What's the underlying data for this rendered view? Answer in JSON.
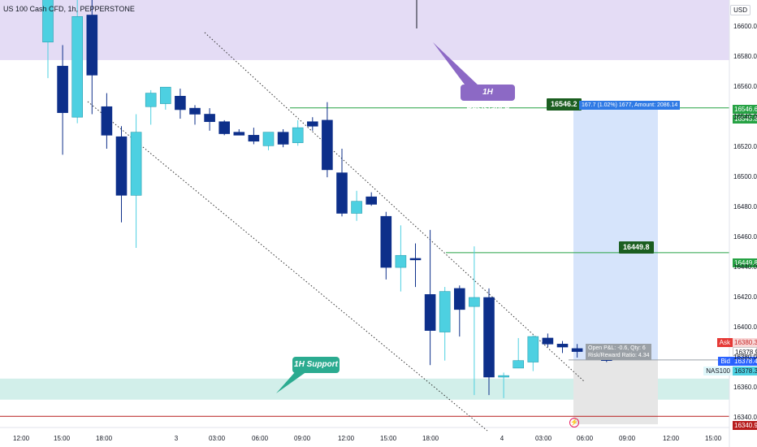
{
  "header": {
    "symbol_title": "US 100 Cash CFD, 1h, PEPPERSTONE",
    "currency": "USD"
  },
  "price_axis": {
    "ticks": [
      "16600.0",
      "16580.0",
      "16560.0",
      "16540.0",
      "16520.0",
      "16500.0",
      "16480.0",
      "16460.0",
      "16440.0",
      "16420.0",
      "16400.0",
      "16380.0",
      "16360.0",
      "16340.0"
    ],
    "ymin": 16334,
    "ymax": 16618
  },
  "time_axis": {
    "ticks": [
      "12:00",
      "15:00",
      "18:00",
      "3",
      "03:00",
      "06:00",
      "09:00",
      "12:00",
      "15:00",
      "18:00",
      "4",
      "03:00",
      "06:00",
      "09:00",
      "12:00",
      "15:00"
    ]
  },
  "zones": {
    "resistance_label": "1H Resistance",
    "support_label": "1H Support",
    "resistance_color": "#e4dcf5",
    "support_color": "#d2efea"
  },
  "position": {
    "target_price": "16546.2",
    "target_info": "167.7 (1.02%) 1677, Amount: 2086.14",
    "mid_price": "16449.8",
    "open_info_line1": "Open P&L: -0.6, Qty: 6",
    "open_info_line2": "Risk/Reward Ratio: 4.34"
  },
  "axis_labels": {
    "target_top": "16546.6",
    "target": "16545.8",
    "mid": "16449.8",
    "ask_label": "Ask",
    "ask": "16380.3",
    "mid_quote": "16378.9",
    "bid_label": "Bid",
    "bid": "16378.4",
    "symbol": "NAS100",
    "last": "16378.3",
    "low": "16340.9"
  },
  "colors": {
    "up": "#4dd0e1",
    "down": "#0d2f8a",
    "green_line": "#26a244",
    "red_line": "#b71c1c",
    "target_zone": "#d6e4fb",
    "stop_zone": "#e6e6e6"
  },
  "chart_data": {
    "type": "candlestick",
    "title": "US 100 Cash CFD, 1h, PEPPERSTONE",
    "series": [
      {
        "o": 16590,
        "h": 16640,
        "l": 16566,
        "c": 16630
      },
      {
        "o": 16574,
        "h": 16588,
        "l": 16515,
        "c": 16543
      },
      {
        "o": 16540,
        "h": 16624,
        "l": 16536,
        "c": 16607
      },
      {
        "o": 16608,
        "h": 16622,
        "l": 16542,
        "c": 16568
      },
      {
        "o": 16547,
        "h": 16556,
        "l": 16519,
        "c": 16528
      },
      {
        "o": 16527,
        "h": 16534,
        "l": 16470,
        "c": 16488
      },
      {
        "o": 16488,
        "h": 16542,
        "l": 16453,
        "c": 16530
      },
      {
        "o": 16547,
        "h": 16558,
        "l": 16535,
        "c": 16556
      },
      {
        "o": 16549,
        "h": 16560,
        "l": 16545,
        "c": 16560
      },
      {
        "o": 16554,
        "h": 16559,
        "l": 16539,
        "c": 16545
      },
      {
        "o": 16546,
        "h": 16548,
        "l": 16535,
        "c": 16542
      },
      {
        "o": 16542,
        "h": 16546,
        "l": 16531,
        "c": 16537
      },
      {
        "o": 16537,
        "h": 16538,
        "l": 16528,
        "c": 16529
      },
      {
        "o": 16530,
        "h": 16532,
        "l": 16528,
        "c": 16528
      },
      {
        "o": 16528,
        "h": 16533,
        "l": 16522,
        "c": 16524
      },
      {
        "o": 16521,
        "h": 16529,
        "l": 16518,
        "c": 16530
      },
      {
        "o": 16530,
        "h": 16532,
        "l": 16520,
        "c": 16522
      },
      {
        "o": 16523,
        "h": 16538,
        "l": 16521,
        "c": 16533
      },
      {
        "o": 16537,
        "h": 16540,
        "l": 16531,
        "c": 16534
      },
      {
        "o": 16538,
        "h": 16550,
        "l": 16500,
        "c": 16505
      },
      {
        "o": 16503,
        "h": 16519,
        "l": 16474,
        "c": 16476
      },
      {
        "o": 16476,
        "h": 16491,
        "l": 16471,
        "c": 16484
      },
      {
        "o": 16487,
        "h": 16490,
        "l": 16481,
        "c": 16482
      },
      {
        "o": 16474,
        "h": 16477,
        "l": 16432,
        "c": 16440
      },
      {
        "o": 16440,
        "h": 16468,
        "l": 16424,
        "c": 16448
      },
      {
        "o": 16446,
        "h": 16456,
        "l": 16427,
        "c": 16445
      },
      {
        "o": 16422,
        "h": 16465,
        "l": 16375,
        "c": 16398
      },
      {
        "o": 16397,
        "h": 16427,
        "l": 16378,
        "c": 16424
      },
      {
        "o": 16426,
        "h": 16428,
        "l": 16394,
        "c": 16412
      },
      {
        "o": 16414,
        "h": 16454,
        "l": 16355,
        "c": 16420
      },
      {
        "o": 16420,
        "h": 16426,
        "l": 16355,
        "c": 16367
      },
      {
        "o": 16367,
        "h": 16370,
        "l": 16353,
        "c": 16368
      },
      {
        "o": 16373,
        "h": 16393,
        "l": 16373,
        "c": 16378
      },
      {
        "o": 16377,
        "h": 16395,
        "l": 16371,
        "c": 16394
      },
      {
        "o": 16393,
        "h": 16396,
        "l": 16387,
        "c": 16389
      },
      {
        "o": 16389,
        "h": 16391,
        "l": 16383,
        "c": 16387
      },
      {
        "o": 16386,
        "h": 16389,
        "l": 16380,
        "c": 16384
      },
      {
        "o": 16383,
        "h": 16385,
        "l": 16379,
        "c": 16381
      },
      {
        "o": 16381,
        "h": 16385,
        "l": 16377,
        "c": 16378
      }
    ],
    "levels": {
      "resistance_zone": [
        16578,
        16620
      ],
      "support_zone": [
        16352,
        16366
      ],
      "target": 16546.2,
      "entry": 16378.4,
      "mid": 16449.8,
      "low": 16340.9
    }
  }
}
